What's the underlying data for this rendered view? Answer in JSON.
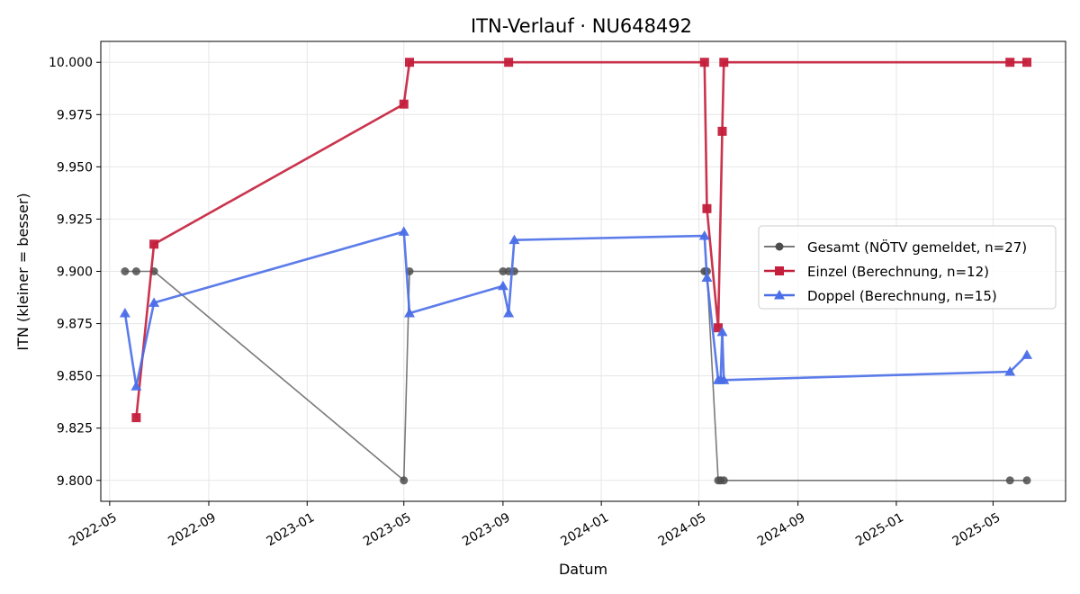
{
  "chart_data": {
    "type": "line",
    "title": "ITN-Verlauf · NU648492",
    "xlabel": "Datum",
    "ylabel": "ITN  (kleiner = besser)",
    "x_ticks": [
      "2022-05",
      "2022-09",
      "2023-01",
      "2023-05",
      "2023-09",
      "2024-01",
      "2024-05",
      "2024-09",
      "2025-01",
      "2025-05"
    ],
    "y_ticks": [
      "9.800",
      "9.825",
      "9.850",
      "9.875",
      "9.900",
      "9.925",
      "9.950",
      "9.975",
      "10.000"
    ],
    "xlim": [
      "2022-04-20",
      "2025-07-30"
    ],
    "ylim": [
      9.79,
      10.01
    ],
    "grid": true,
    "legend_position": "center-right",
    "series": [
      {
        "name": "Gesamt (NÖTV gemeldet, n=27)",
        "color": "#4d4d4d",
        "marker": "circle",
        "x": [
          "2022-05-20",
          "2022-06-03",
          "2022-06-25",
          "2023-05-01",
          "2023-05-08",
          "2023-09-01",
          "2023-09-08",
          "2023-09-15",
          "2024-05-08",
          "2024-05-11",
          "2024-05-25",
          "2024-05-28",
          "2024-06-01",
          "2025-05-22",
          "2025-06-12"
        ],
        "y": [
          9.9,
          9.9,
          9.9,
          9.8,
          9.9,
          9.9,
          9.9,
          9.9,
          9.9,
          9.9,
          9.8,
          9.8,
          9.8,
          9.8,
          9.8
        ]
      },
      {
        "name": "Einzel (Berechnung, n=12)",
        "color": "#c41e3a",
        "marker": "square",
        "x": [
          "2022-06-03",
          "2022-06-25",
          "2023-05-01",
          "2023-05-08",
          "2023-09-08",
          "2024-05-08",
          "2024-05-11",
          "2024-05-25",
          "2024-05-30",
          "2024-06-01",
          "2025-05-22",
          "2025-06-12"
        ],
        "y": [
          9.83,
          9.913,
          9.98,
          10.0,
          10.0,
          10.0,
          9.93,
          9.873,
          9.967,
          10.0,
          10.0,
          10.0
        ]
      },
      {
        "name": "Doppel (Berechnung, n=15)",
        "color": "#4a6ee8",
        "marker": "triangle",
        "x": [
          "2022-05-20",
          "2022-06-03",
          "2022-06-25",
          "2023-05-01",
          "2023-05-08",
          "2023-09-01",
          "2023-09-08",
          "2023-09-15",
          "2024-05-08",
          "2024-05-11",
          "2024-05-25",
          "2024-05-28",
          "2024-05-30",
          "2024-06-01",
          "2025-05-22",
          "2025-06-12"
        ],
        "y": [
          9.88,
          9.845,
          9.885,
          9.919,
          9.88,
          9.893,
          9.88,
          9.915,
          9.917,
          9.897,
          9.848,
          9.848,
          9.871,
          9.848,
          9.852,
          9.86
        ]
      }
    ]
  }
}
